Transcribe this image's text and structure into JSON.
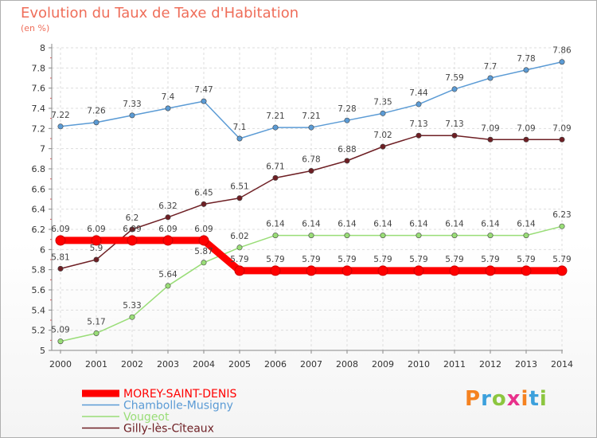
{
  "chart_data": {
    "type": "line",
    "title": "Evolution du Taux de Taxe d'Habitation",
    "subtitle": "(en %)",
    "x": [
      "2000",
      "2001",
      "2002",
      "2003",
      "2004",
      "2005",
      "2006",
      "2007",
      "2008",
      "2009",
      "2010",
      "2011",
      "2012",
      "2013",
      "2014"
    ],
    "ylim": [
      5,
      8
    ],
    "yticks": [
      "5",
      "5.2",
      "5.4",
      "5.6",
      "5.8",
      "6",
      "6.2",
      "6.4",
      "6.6",
      "6.8",
      "7",
      "7.2",
      "7.4",
      "7.6",
      "7.8",
      "8"
    ],
    "grid": true,
    "legend_position": "bottom-left",
    "series": [
      {
        "name": "MOREY-SAINT-DENIS",
        "color": "#ff0000",
        "values": [
          6.09,
          6.09,
          6.09,
          6.09,
          6.09,
          5.79,
          5.79,
          5.79,
          5.79,
          5.79,
          5.79,
          5.79,
          5.79,
          5.79,
          5.79
        ],
        "labels": [
          "6.09",
          "6.09",
          "6.09",
          "6.09",
          "6.09",
          "5.79",
          "5.79",
          "5.79",
          "5.79",
          "5.79",
          "5.79",
          "5.79",
          "5.79",
          "5.79",
          "5.79"
        ]
      },
      {
        "name": "Chambolle-Musigny",
        "color": "#5b9bd5",
        "values": [
          7.22,
          7.26,
          7.33,
          7.4,
          7.47,
          7.1,
          7.21,
          7.21,
          7.28,
          7.35,
          7.44,
          7.59,
          7.7,
          7.78,
          7.86
        ],
        "labels": [
          "7.22",
          "7.26",
          "7.33",
          "7.4",
          "7.47",
          "7.1",
          "7.21",
          "7.21",
          "7.28",
          "7.35",
          "7.44",
          "7.59",
          "7.7",
          "7.78",
          "7.86"
        ]
      },
      {
        "name": "Vougeot",
        "color": "#99dd77",
        "values": [
          5.09,
          5.17,
          5.33,
          5.64,
          5.87,
          6.02,
          6.14,
          6.14,
          6.14,
          6.14,
          6.14,
          6.14,
          6.14,
          6.14,
          6.23
        ],
        "labels": [
          "5.09",
          "5.17",
          "5.33",
          "5.64",
          "5.87",
          "6.02",
          "6.14",
          "6.14",
          "6.14",
          "6.14",
          "6.14",
          "6.14",
          "6.14",
          "6.14",
          "6.23"
        ]
      },
      {
        "name": "Gilly-lès-Cîteaux",
        "color": "#6e1f24",
        "values": [
          5.81,
          5.9,
          6.2,
          6.32,
          6.45,
          6.51,
          6.71,
          6.78,
          6.88,
          7.02,
          7.13,
          7.13,
          7.09,
          7.09,
          7.09
        ],
        "labels": [
          "5.81",
          "5.9",
          "6.2",
          "6.32",
          "6.45",
          "6.51",
          "6.71",
          "6.78",
          "6.88",
          "7.02",
          "7.13",
          "7.13",
          "7.09",
          "7.09",
          "7.09"
        ]
      }
    ]
  },
  "logo": {
    "text": "Proxiti"
  }
}
